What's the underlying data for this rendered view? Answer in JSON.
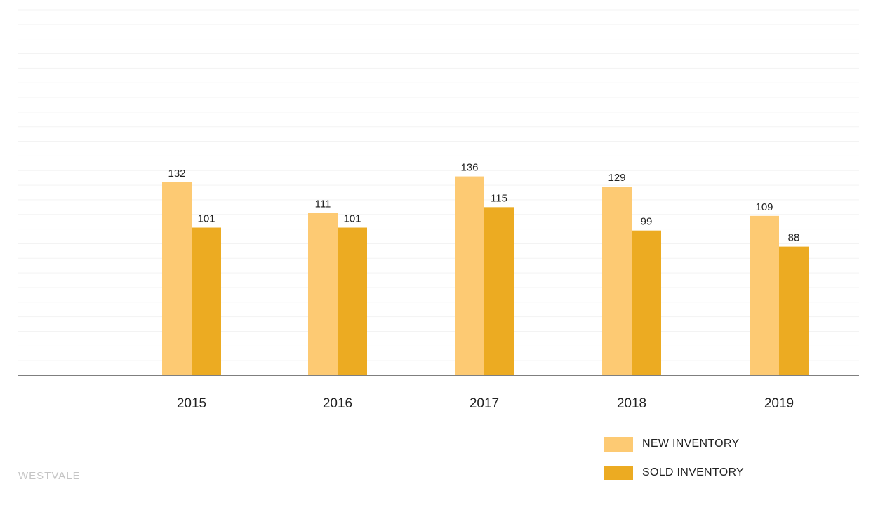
{
  "chart_data": {
    "type": "bar",
    "categories": [
      "2015",
      "2016",
      "2017",
      "2018",
      "2019"
    ],
    "series": [
      {
        "name": "NEW INVENTORY",
        "values": [
          132,
          111,
          136,
          129,
          109
        ],
        "color": "#fdca73"
      },
      {
        "name": "SOLD INVENTORY",
        "values": [
          101,
          101,
          115,
          99,
          88
        ],
        "color": "#ecab22"
      }
    ],
    "ylim": [
      0,
      250
    ],
    "grid": true,
    "legend_position": "bottom-right",
    "colors": {
      "grid": "#f3f3f3",
      "axis": "#555555"
    }
  },
  "brand": {
    "text": "WESTVALE"
  }
}
